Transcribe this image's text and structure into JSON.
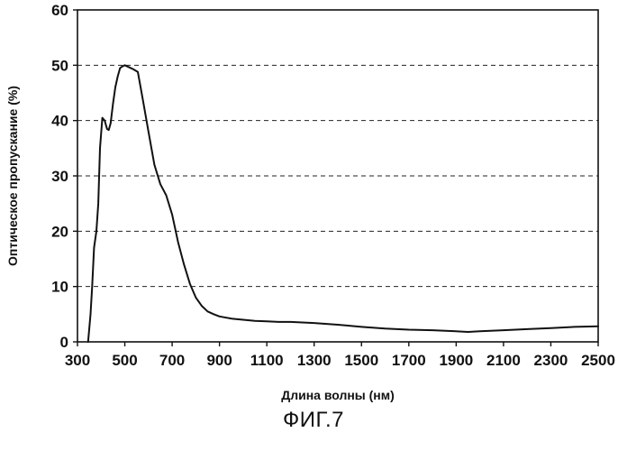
{
  "figure": {
    "caption": "ФИГ.7"
  },
  "chart_data": {
    "type": "line",
    "xlabel": "Длина волны (нм)",
    "ylabel": "Оптическое пропускание (%)",
    "xlim": [
      300,
      2500
    ],
    "ylim": [
      0,
      60
    ],
    "x_ticks": [
      300,
      500,
      700,
      900,
      1100,
      1300,
      1500,
      1700,
      1900,
      2100,
      2300,
      2500
    ],
    "y_ticks": [
      0,
      10,
      20,
      30,
      40,
      50,
      60
    ],
    "grid": {
      "horizontal": true,
      "vertical": false,
      "style": "dashed"
    },
    "legend": "none",
    "line_color": "#111111",
    "series": [
      {
        "x": [
          345,
          355,
          362,
          370,
          380,
          388,
          395,
          405,
          415,
          425,
          432,
          440,
          450,
          460,
          470,
          480,
          490,
          500,
          510,
          520,
          535,
          555,
          575,
          600,
          625,
          650,
          675,
          700,
          725,
          750,
          775,
          800,
          825,
          850,
          875,
          900,
          950,
          1000,
          1050,
          1100,
          1150,
          1200,
          1300,
          1400,
          1500,
          1600,
          1700,
          1800,
          1900,
          1950,
          2000,
          2100,
          2200,
          2300,
          2400,
          2500
        ],
        "y": [
          0,
          5,
          10,
          17,
          20,
          25,
          35,
          40.5,
          40,
          38.5,
          38.3,
          39.5,
          43,
          46,
          48,
          49.5,
          49.8,
          50,
          49.8,
          49.6,
          49.3,
          48.8,
          44,
          38,
          32,
          28.5,
          26.5,
          23,
          18,
          14,
          10.5,
          8,
          6.5,
          5.5,
          5,
          4.6,
          4.2,
          4,
          3.8,
          3.7,
          3.6,
          3.6,
          3.4,
          3.1,
          2.7,
          2.4,
          2.2,
          2.1,
          1.9,
          1.8,
          1.9,
          2.1,
          2.3,
          2.5,
          2.7,
          2.8
        ]
      }
    ]
  }
}
